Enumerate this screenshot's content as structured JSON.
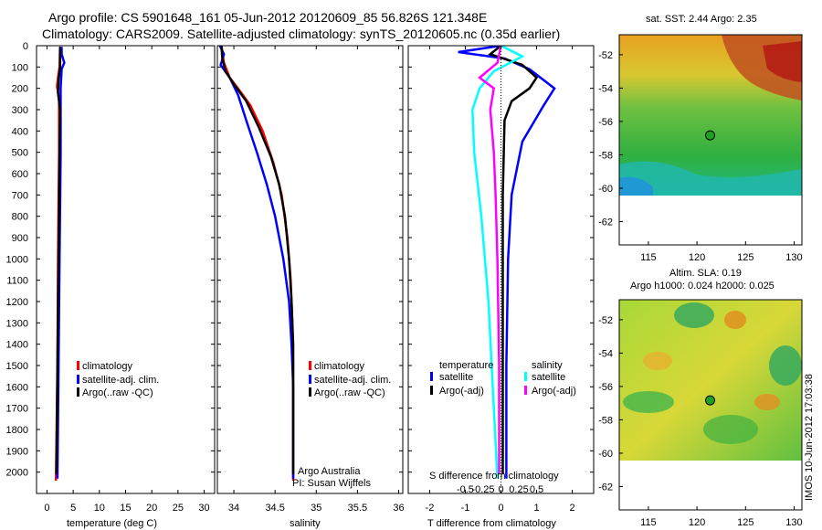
{
  "header": {
    "title_line1": "Argo profile: CS 5901648_161 05-Jun-2012 20120609_85 56.826S 121.348E",
    "title_line2": "Climatology: CARS2009. Satellite-adjusted climatology: synTS_20120605.nc (0.35d earlier)"
  },
  "colors": {
    "climatology": "#ff0000",
    "satellite": "#0000ff",
    "argo": "#000000",
    "satellite_salinity": "#00ffff",
    "argo_salinity": "#ff00ff"
  },
  "chart_data": [
    {
      "id": "temperature",
      "type": "line",
      "xlabel": "temperature (deg C)",
      "ylabel": "",
      "xlim": [
        -2,
        32
      ],
      "ylim": [
        2100,
        0
      ],
      "xticks": [
        0,
        5,
        10,
        15,
        20,
        25,
        30
      ],
      "xticklabels": [
        "0",
        "5",
        "10",
        "15",
        "20",
        "25",
        "30"
      ],
      "yticks": [
        0,
        100,
        200,
        300,
        400,
        500,
        600,
        700,
        800,
        900,
        1000,
        1100,
        1200,
        1300,
        1400,
        1500,
        1600,
        1700,
        1800,
        1900,
        2000
      ],
      "yticklabels": [
        "0",
        "100",
        "200",
        "300",
        "400",
        "500",
        "600",
        "700",
        "800",
        "900",
        "1000",
        "1100",
        "1200",
        "1300",
        "1400",
        "1500",
        "1600",
        "1700",
        "1800",
        "1900",
        "2000"
      ],
      "legend": [
        "climatology",
        "satellite-adj. clim.",
        "Argo(..raw -QC)"
      ],
      "series": [
        {
          "name": "climatology",
          "color": "#ff0000",
          "points": [
            [
              2.5,
              5
            ],
            [
              2.4,
              100
            ],
            [
              2.1,
              150
            ],
            [
              1.9,
              190
            ],
            [
              2.3,
              250
            ],
            [
              2.3,
              500
            ],
            [
              2.1,
              1000
            ],
            [
              2.0,
              1500
            ],
            [
              1.7,
              2040
            ]
          ]
        },
        {
          "name": "satellite-adj. clim.",
          "color": "#0000ff",
          "points": [
            [
              2.8,
              5
            ],
            [
              2.8,
              40
            ],
            [
              3.3,
              80
            ],
            [
              2.8,
              110
            ],
            [
              2.6,
              200
            ],
            [
              2.6,
              500
            ],
            [
              2.4,
              1000
            ],
            [
              2.2,
              1500
            ],
            [
              2.0,
              2030
            ]
          ]
        },
        {
          "name": "Argo(..raw -QC)",
          "color": "#000000",
          "points": [
            [
              2.5,
              5
            ],
            [
              2.5,
              100
            ],
            [
              2.2,
              160
            ],
            [
              2.1,
              220
            ],
            [
              2.5,
              300
            ],
            [
              2.4,
              500
            ],
            [
              2.2,
              1000
            ],
            [
              2.0,
              1500
            ],
            [
              1.8,
              2010
            ]
          ]
        }
      ]
    },
    {
      "id": "salinity",
      "type": "line",
      "xlabel": "salinity",
      "ylabel": "",
      "xlim": [
        33.8,
        36.05
      ],
      "ylim": [
        2100,
        0
      ],
      "xticks": [
        34,
        34.5,
        35,
        35.5,
        36
      ],
      "xticklabels": [
        "34",
        "34.5",
        "35",
        "35.5",
        "36"
      ],
      "yticks": [
        0,
        100,
        200,
        300,
        400,
        500,
        600,
        700,
        800,
        900,
        1000,
        1100,
        1200,
        1300,
        1400,
        1500,
        1600,
        1700,
        1800,
        1900,
        2000
      ],
      "legend": [
        "climatology",
        "satellite-adj. clim.",
        "Argo(..raw -QC)"
      ],
      "annotations": [
        "Argo Australia",
        "PI: Susan Wijffels"
      ],
      "series": [
        {
          "name": "climatology",
          "color": "#ff0000",
          "points": [
            [
              33.85,
              0
            ],
            [
              33.88,
              80
            ],
            [
              33.95,
              150
            ],
            [
              34.05,
              200
            ],
            [
              34.2,
              280
            ],
            [
              34.35,
              400
            ],
            [
              34.48,
              550
            ],
            [
              34.58,
              700
            ],
            [
              34.65,
              900
            ],
            [
              34.69,
              1100
            ],
            [
              34.71,
              1300
            ],
            [
              34.72,
              1500
            ],
            [
              34.72,
              1800
            ],
            [
              34.72,
              2040
            ]
          ]
        },
        {
          "name": "satellite-adj. clim.",
          "color": "#0000ff",
          "points": [
            [
              33.83,
              0
            ],
            [
              33.88,
              40
            ],
            [
              33.84,
              90
            ],
            [
              33.95,
              150
            ],
            [
              34.05,
              230
            ],
            [
              34.15,
              350
            ],
            [
              34.28,
              500
            ],
            [
              34.4,
              650
            ],
            [
              34.5,
              800
            ],
            [
              34.6,
              1000
            ],
            [
              34.67,
              1200
            ],
            [
              34.7,
              1400
            ],
            [
              34.72,
              1600
            ],
            [
              34.72,
              2030
            ]
          ]
        },
        {
          "name": "Argo(..raw -QC)",
          "color": "#000000",
          "points": [
            [
              33.85,
              0
            ],
            [
              33.86,
              60
            ],
            [
              33.9,
              120
            ],
            [
              34.0,
              180
            ],
            [
              34.15,
              260
            ],
            [
              34.3,
              380
            ],
            [
              34.45,
              520
            ],
            [
              34.55,
              650
            ],
            [
              34.62,
              800
            ],
            [
              34.67,
              1000
            ],
            [
              34.7,
              1200
            ],
            [
              34.72,
              1400
            ],
            [
              34.72,
              1700
            ],
            [
              34.72,
              2010
            ]
          ]
        }
      ]
    },
    {
      "id": "difference",
      "type": "line",
      "xlabel": "T difference from climatology",
      "xlabel_top": "S difference from climatology",
      "xlim": [
        -2.6,
        2.6
      ],
      "ylim": [
        2100,
        0
      ],
      "xticks": [
        -2,
        -1,
        0,
        1,
        2
      ],
      "xticklabels": [
        "-2",
        "-1",
        "0",
        "1",
        "2"
      ],
      "sticks": [
        -1,
        -0.5,
        0,
        0.5,
        1
      ],
      "sticklabels": [
        "-0.5",
        "-0.25",
        "0",
        "0.25",
        "0.5"
      ],
      "yticks": [
        0,
        100,
        200,
        300,
        400,
        500,
        600,
        700,
        800,
        900,
        1000,
        1100,
        1200,
        1300,
        1400,
        1500,
        1600,
        1700,
        1800,
        1900,
        2000
      ],
      "legend_groups": [
        {
          "title": "temperature",
          "items": [
            "satellite",
            "Argo(-adj)"
          ]
        },
        {
          "title": "salinity",
          "items": [
            "satellite",
            "Argo(-adj)"
          ]
        }
      ],
      "series": [
        {
          "name": "satellite",
          "quantity": "temperature",
          "color": "#0000ff",
          "points": [
            [
              0,
              0
            ],
            [
              -1.2,
              30
            ],
            [
              0.1,
              60
            ],
            [
              0.8,
              110
            ],
            [
              1.5,
              200
            ],
            [
              1.2,
              280
            ],
            [
              0.6,
              450
            ],
            [
              0.3,
              700
            ],
            [
              0.2,
              1000
            ],
            [
              0.15,
              1500
            ],
            [
              0.15,
              2030
            ]
          ]
        },
        {
          "name": "Argo(-adj)",
          "quantity": "temperature",
          "color": "#000000",
          "points": [
            [
              0,
              0
            ],
            [
              -0.3,
              40
            ],
            [
              0.6,
              90
            ],
            [
              1.0,
              150
            ],
            [
              0.8,
              200
            ],
            [
              0.3,
              260
            ],
            [
              0.1,
              350
            ],
            [
              0.05,
              700
            ],
            [
              0.05,
              1500
            ],
            [
              0.05,
              2010
            ]
          ]
        },
        {
          "name": "satellite",
          "quantity": "salinity",
          "color": "#00ffff",
          "points": [
            [
              0,
              0
            ],
            [
              0.6,
              50
            ],
            [
              -0.2,
              120
            ],
            [
              -0.6,
              200
            ],
            [
              -0.8,
              300
            ],
            [
              -0.75,
              500
            ],
            [
              -0.55,
              800
            ],
            [
              -0.35,
              1200
            ],
            [
              -0.2,
              1700
            ],
            [
              -0.1,
              2030
            ]
          ]
        },
        {
          "name": "Argo(-adj)",
          "quantity": "salinity",
          "color": "#ff00ff",
          "points": [
            [
              0,
              0
            ],
            [
              -0.1,
              80
            ],
            [
              -0.6,
              150
            ],
            [
              -0.2,
              200
            ],
            [
              -0.3,
              300
            ],
            [
              -0.2,
              500
            ],
            [
              -0.15,
              700
            ],
            [
              -0.1,
              1000
            ],
            [
              -0.05,
              1500
            ],
            [
              -0.05,
              2010
            ]
          ]
        }
      ]
    },
    {
      "id": "sst_map",
      "type": "heatmap",
      "title": "sat. SST: 2.44  Argo: 2.35",
      "xticks": [
        115,
        120,
        125,
        130
      ],
      "yticks": [
        -52,
        -54,
        -56,
        -58,
        -60,
        -62
      ],
      "xlim": [
        112,
        130.8
      ],
      "ylim": [
        -63.4,
        -50.8
      ],
      "data_ylim": [
        -60,
        -50.8
      ],
      "marker": [
        121.35,
        -56.83
      ]
    },
    {
      "id": "sla_map",
      "type": "heatmap",
      "title_line1": "Altim. SLA: 0.19",
      "title_line2": "Argo h1000: 0.024 h2000: 0.025",
      "xticks": [
        115,
        120,
        125,
        130
      ],
      "yticks": [
        -52,
        -54,
        -56,
        -58,
        -60,
        -62
      ],
      "xlim": [
        112,
        130.8
      ],
      "ylim": [
        -63.4,
        -50.8
      ],
      "data_ylim": [
        -60,
        -50.8
      ],
      "marker": [
        121.35,
        -56.83
      ]
    }
  ],
  "footer": {
    "vertical_label": "IMOS 10-Jun-2012 17:03:38"
  }
}
